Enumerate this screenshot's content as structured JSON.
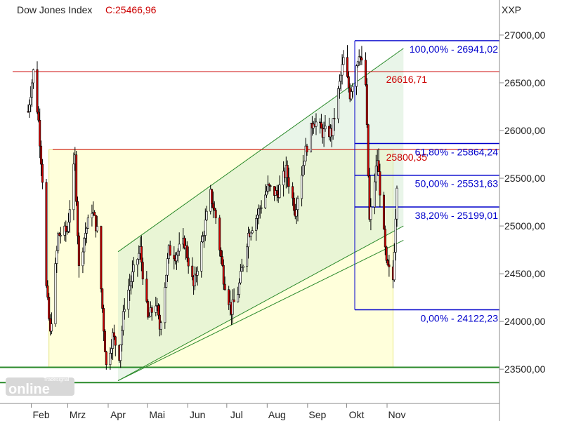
{
  "chart_data": {
    "type": "candlestick",
    "title": "Dow Jones Index",
    "last_close_label": "C:25466,96",
    "currency": "XXP",
    "x_range": [
      "2018-01-22",
      "2018-11-01"
    ],
    "y_range": [
      23200,
      27220
    ],
    "y_ticks": [
      "27000,00",
      "26500,00",
      "26000,00",
      "25500,00",
      "25000,00",
      "24500,00",
      "24000,00",
      "23500,00"
    ],
    "y_tick_values": [
      27000,
      26500,
      26000,
      25500,
      25000,
      24500,
      24000,
      23500
    ],
    "x_ticks": [
      {
        "label": "Feb",
        "date": "2018-02-01"
      },
      {
        "label": "Mrz",
        "date": "2018-03-01"
      },
      {
        "label": "Apr",
        "date": "2018-04-01"
      },
      {
        "label": "Mai",
        "date": "2018-05-01"
      },
      {
        "label": "Jun",
        "date": "2018-06-01"
      },
      {
        "label": "Jul",
        "date": "2018-07-01"
      },
      {
        "label": "Aug",
        "date": "2018-08-01"
      },
      {
        "label": "Sep",
        "date": "2018-09-01"
      },
      {
        "label": "Okt",
        "date": "2018-10-01"
      },
      {
        "label": "Nov",
        "date": "2018-11-01"
      }
    ],
    "price_path": [
      [
        "2018-01-22",
        26200
      ],
      [
        "2018-01-26",
        26616
      ],
      [
        "2018-01-30",
        26100
      ],
      [
        "2018-02-02",
        25500
      ],
      [
        "2018-02-05",
        24350
      ],
      [
        "2018-02-08",
        23860
      ],
      [
        "2018-02-14",
        24900
      ],
      [
        "2018-02-21",
        24950
      ],
      [
        "2018-02-27",
        25710
      ],
      [
        "2018-03-02",
        24550
      ],
      [
        "2018-03-06",
        24880
      ],
      [
        "2018-03-12",
        25180
      ],
      [
        "2018-03-16",
        24950
      ],
      [
        "2018-03-23",
        23530
      ],
      [
        "2018-03-28",
        23850
      ],
      [
        "2018-04-02",
        23650
      ],
      [
        "2018-04-06",
        24180
      ],
      [
        "2018-04-12",
        24480
      ],
      [
        "2018-04-18",
        24750
      ],
      [
        "2018-04-24",
        24020
      ],
      [
        "2018-04-30",
        24200
      ],
      [
        "2018-05-03",
        23930
      ],
      [
        "2018-05-10",
        24740
      ],
      [
        "2018-05-15",
        24700
      ],
      [
        "2018-05-22",
        24830
      ],
      [
        "2018-05-29",
        24360
      ],
      [
        "2018-06-04",
        24800
      ],
      [
        "2018-06-11",
        25330
      ],
      [
        "2018-06-15",
        25090
      ],
      [
        "2018-06-21",
        24460
      ],
      [
        "2018-06-27",
        24120
      ],
      [
        "2018-07-02",
        24310
      ],
      [
        "2018-07-10",
        24920
      ],
      [
        "2018-07-17",
        25120
      ],
      [
        "2018-07-25",
        25400
      ],
      [
        "2018-08-01",
        25330
      ],
      [
        "2018-08-08",
        25580
      ],
      [
        "2018-08-15",
        25160
      ],
      [
        "2018-08-22",
        25730
      ],
      [
        "2018-08-29",
        26120
      ],
      [
        "2018-09-05",
        25980
      ],
      [
        "2018-09-12",
        25980
      ],
      [
        "2018-09-21",
        26740
      ],
      [
        "2018-09-26",
        26380
      ],
      [
        "2018-10-03",
        26830
      ],
      [
        "2018-10-08",
        26480
      ],
      [
        "2018-10-11",
        25050
      ],
      [
        "2018-10-17",
        25700
      ],
      [
        "2018-10-24",
        24580
      ],
      [
        "2018-10-29",
        24440
      ],
      [
        "2018-11-01",
        25466
      ]
    ],
    "horizontal_lines": [
      {
        "value": 26616.71,
        "label": "26616,71",
        "color": "#cc0000"
      },
      {
        "value": 25800.35,
        "label": "25800,35",
        "color": "#cc0000"
      },
      {
        "value": 23520,
        "label": "",
        "color": "#2a8a2a"
      },
      {
        "value": 23360,
        "label": "",
        "color": "#2a8a2a"
      }
    ],
    "fibonacci": {
      "color": "#0000cc",
      "levels": [
        {
          "pct": "100,00%",
          "value": 26941.02,
          "label": "100,00% - 26941,02"
        },
        {
          "pct": "61,80%",
          "value": 25864.24,
          "label": "61,80% - 25864,24"
        },
        {
          "pct": "50,00%",
          "value": 25531.63,
          "label": "50,00% - 25531,63"
        },
        {
          "pct": "38,20%",
          "value": 25199.01,
          "label": "38,20% - 25199,01"
        },
        {
          "pct": "0,00%",
          "value": 24122.23,
          "label": "0,00% - 24122,23"
        }
      ]
    },
    "channel": {
      "color": "#2a8a2a",
      "lower": [
        [
          "2018-04-01",
          23380
        ],
        [
          "2018-11-06",
          25000
        ]
      ],
      "upper": [
        [
          "2018-04-01",
          24730
        ],
        [
          "2018-11-06",
          26860
        ]
      ],
      "middle": [
        [
          "2018-04-01",
          23380
        ],
        [
          "2018-11-06",
          24850
        ]
      ]
    },
    "highlight_box": {
      "from_date": "2018-02-07",
      "to_date": "2018-10-29",
      "top": 25800,
      "bottom": 23520,
      "color": "#ffffcc"
    },
    "grid": false,
    "legend": "none"
  },
  "watermark": {
    "brand": "Tradesignal",
    "product": "online"
  }
}
